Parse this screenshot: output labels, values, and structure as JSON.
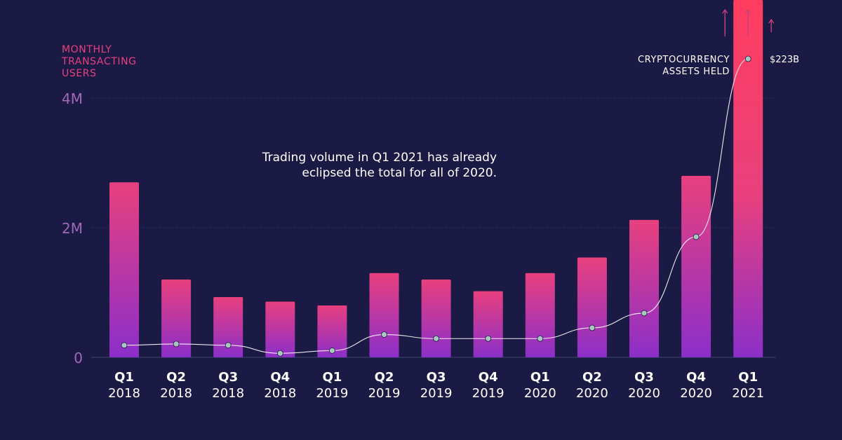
{
  "chart_data": {
    "type": "bar",
    "y_axis_title": "MONTHLY\nTRANSACTING\nUSERS",
    "y_ticks": [
      "0",
      "2M",
      "4M"
    ],
    "y_tick_values": [
      0,
      2000000,
      4000000
    ],
    "ylim": [
      0,
      4000000
    ],
    "categories": [
      {
        "quarter": "Q1",
        "year": "2018"
      },
      {
        "quarter": "Q2",
        "year": "2018"
      },
      {
        "quarter": "Q3",
        "year": "2018"
      },
      {
        "quarter": "Q4",
        "year": "2018"
      },
      {
        "quarter": "Q1",
        "year": "2019"
      },
      {
        "quarter": "Q2",
        "year": "2019"
      },
      {
        "quarter": "Q3",
        "year": "2019"
      },
      {
        "quarter": "Q4",
        "year": "2019"
      },
      {
        "quarter": "Q1",
        "year": "2020"
      },
      {
        "quarter": "Q2",
        "year": "2020"
      },
      {
        "quarter": "Q3",
        "year": "2020"
      },
      {
        "quarter": "Q4",
        "year": "2020"
      },
      {
        "quarter": "Q1",
        "year": "2021"
      }
    ],
    "bar_values": [
      2700000,
      1200000,
      930000,
      860000,
      800000,
      1300000,
      1200000,
      1020000,
      1300000,
      1540000,
      2120000,
      2800000,
      5500000
    ],
    "bar_overflow_last": true,
    "line_series": {
      "name": "CRYPTOCURRENCY ASSETS HELD",
      "end_label": "$223B",
      "values_billions": [
        9,
        10,
        9,
        3,
        5,
        17,
        14,
        14,
        14,
        22,
        33,
        90,
        223
      ],
      "y_max_billions": 223
    },
    "annotation": "Trading volume in Q1 2021 has already eclipsed the total for all of 2020.",
    "grid": true
  },
  "labels": {
    "y_title_line1": "MONTHLY",
    "y_title_line2": "TRANSACTING",
    "y_title_line3": "USERS",
    "note_line1": "Trading volume in Q1 2021 has already",
    "note_line2": "eclipsed the total for all of 2020.",
    "series_label_line1": "CRYPTOCURRENCY",
    "series_label_line2": "ASSETS HELD",
    "series_value": "$223B"
  },
  "colors": {
    "background": "#1a1a44",
    "bar_top": "#e8407e",
    "bar_bottom": "#8b2fc9",
    "line": "#ffffff",
    "point": "#a8c8c0",
    "grid": "#3c3c6a",
    "tick_text": "#a06ab8",
    "arrow": "#c8407e"
  }
}
